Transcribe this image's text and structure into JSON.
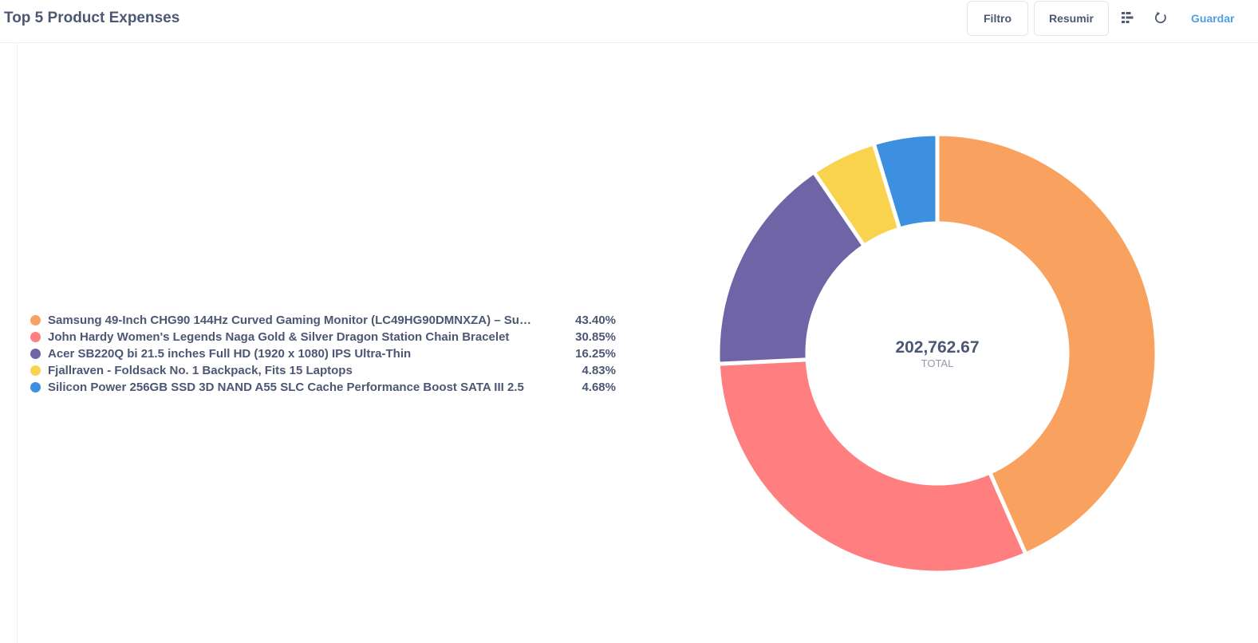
{
  "header": {
    "title": "Top 5 Product Expenses",
    "filter_label": "Filtro",
    "summarize_label": "Resumir",
    "save_label": "Guardar",
    "icons": [
      "list-icon",
      "refresh-icon"
    ]
  },
  "chart_data": {
    "type": "pie",
    "donut": true,
    "total_value": "202,762.67",
    "total_label": "TOTAL",
    "legend_position": "left",
    "slices": [
      {
        "name": "Samsung 49-Inch CHG90 144Hz Curved Gaming Monitor (LC49HG90DMNXZA) – Su…",
        "percent_label": "43.40%",
        "value": 43.4,
        "color": "#f9a15e"
      },
      {
        "name": "John Hardy Women's Legends Naga Gold & Silver Dragon Station Chain Bracelet",
        "percent_label": "30.85%",
        "value": 30.85,
        "color": "#ff7f80"
      },
      {
        "name": "Acer SB220Q bi 21.5 inches Full HD (1920 x 1080) IPS Ultra-Thin",
        "percent_label": "16.25%",
        "value": 16.25,
        "color": "#6e64a6"
      },
      {
        "name": "Fjallraven - Foldsack No. 1 Backpack, Fits 15 Laptops",
        "percent_label": "4.83%",
        "value": 4.83,
        "color": "#f9d34e"
      },
      {
        "name": "Silicon Power 256GB SSD 3D NAND A55 SLC Cache Performance Boost SATA III 2.5",
        "percent_label": "4.68%",
        "value": 4.68,
        "color": "#3d8fe0"
      }
    ]
  }
}
